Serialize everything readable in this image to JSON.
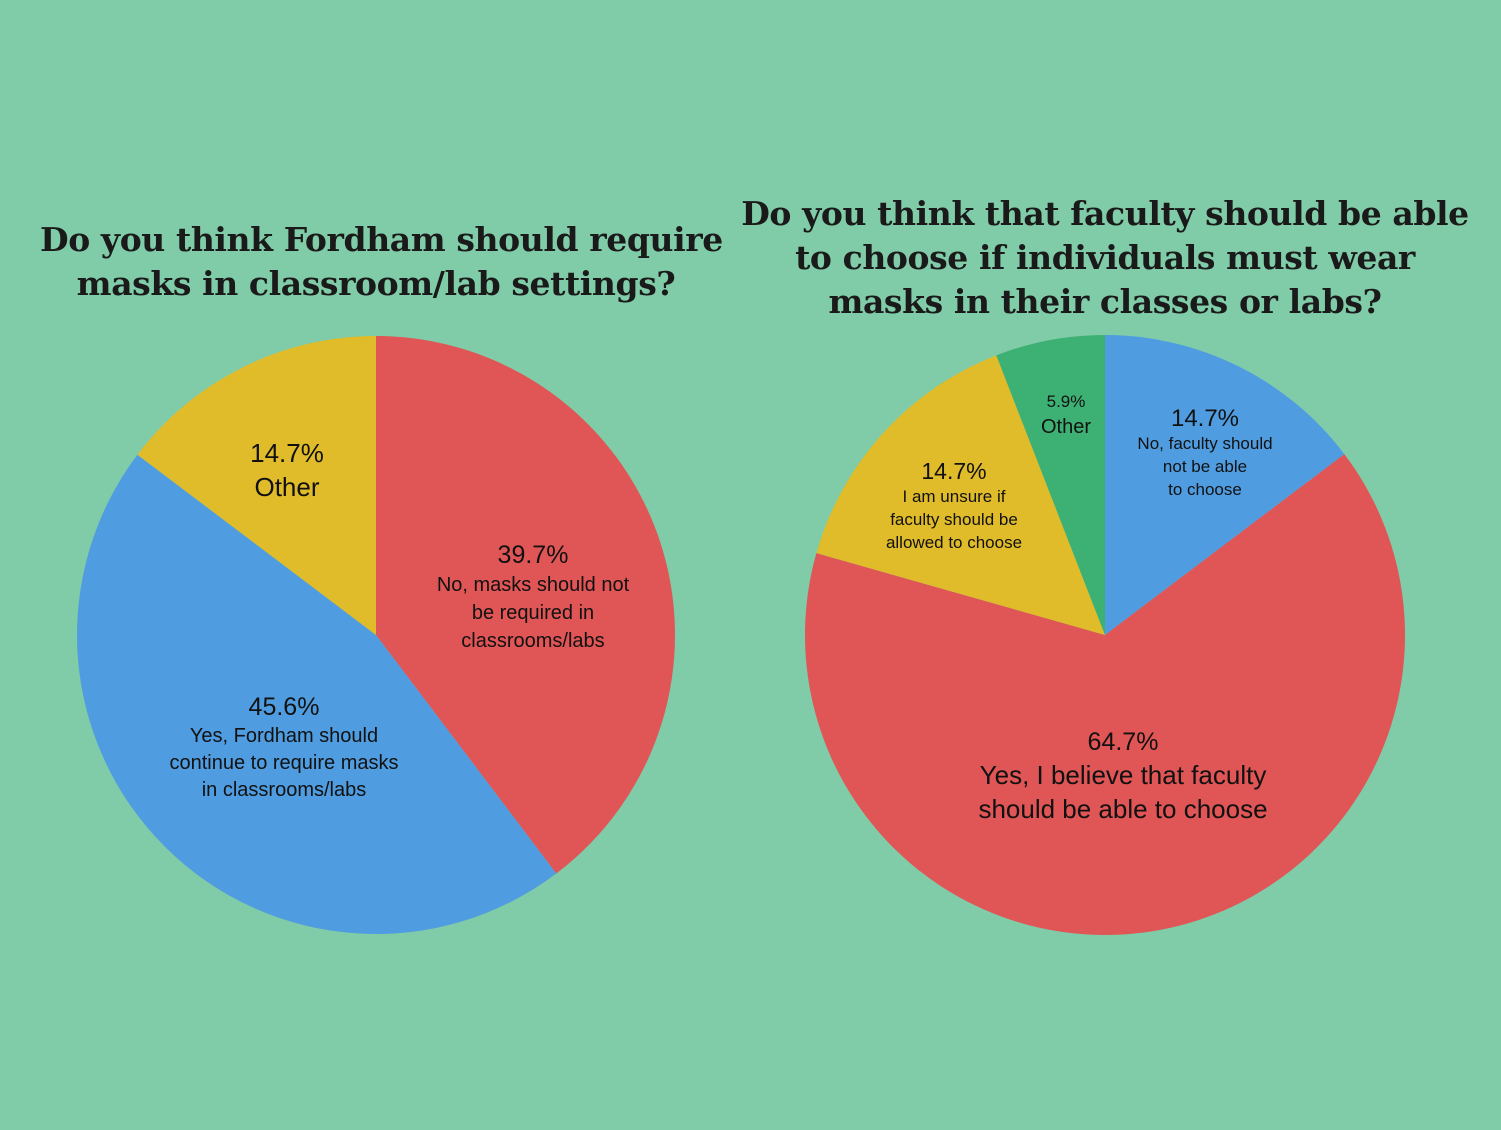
{
  "chart_data": [
    {
      "type": "pie",
      "title_lines": [
        "Do you think Fordham should require",
        "masks in classroom/lab settings?"
      ],
      "slices": [
        {
          "value": 39.7,
          "pct_label": "39.7%",
          "label_lines": [
            "No, masks should not",
            "be required in",
            "classrooms/labs"
          ],
          "color": "#e05555"
        },
        {
          "value": 45.6,
          "pct_label": "45.6%",
          "label_lines": [
            "Yes, Fordham should",
            "continue to require masks",
            "in classrooms/labs"
          ],
          "color": "#4f9de0"
        },
        {
          "value": 14.7,
          "pct_label": "14.7%",
          "label_lines": [
            "Other"
          ],
          "color": "#e0bb2a"
        }
      ]
    },
    {
      "type": "pie",
      "title_lines": [
        "Do you think that faculty should be able",
        "to choose if individuals must wear",
        "masks in their classes or labs?"
      ],
      "slices": [
        {
          "value": 14.7,
          "pct_label": "14.7%",
          "label_lines": [
            "No, faculty should",
            "not be able",
            "to choose"
          ],
          "color": "#4f9de0"
        },
        {
          "value": 64.7,
          "pct_label": "64.7%",
          "label_lines": [
            "Yes, I believe that faculty",
            "should be able to choose"
          ],
          "color": "#e05555"
        },
        {
          "value": 14.7,
          "pct_label": "14.7%",
          "label_lines": [
            "I am unsure if",
            "faculty should be",
            "allowed to choose"
          ],
          "color": "#e0bb2a"
        },
        {
          "value": 5.9,
          "pct_label": "5.9%",
          "label_lines": [
            "Other"
          ],
          "color": "#3db074"
        }
      ]
    }
  ]
}
